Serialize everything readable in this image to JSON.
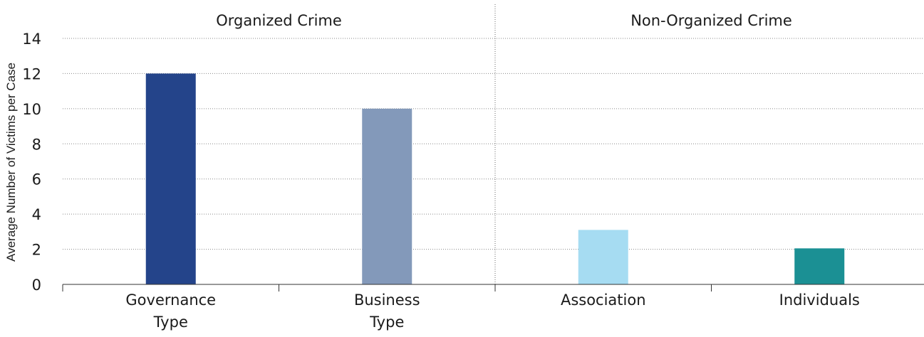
{
  "chart_data": {
    "type": "bar",
    "ylabel": "Average Number of Victims per Case",
    "ylim": [
      0,
      14
    ],
    "yticks": [
      0,
      2,
      4,
      6,
      8,
      10,
      12,
      14
    ],
    "grid": true,
    "groups": [
      {
        "label": "Organized Crime",
        "categories": [
          0,
          1
        ]
      },
      {
        "label": "Non-Organized Crime",
        "categories": [
          2,
          3
        ]
      }
    ],
    "categories": [
      [
        "Governance",
        "Type"
      ],
      [
        "Business",
        "Type"
      ],
      [
        "Association"
      ],
      [
        "Individuals"
      ]
    ],
    "values": [
      12,
      10,
      3.1,
      2.05
    ],
    "colors": [
      "#24448a",
      "#8399ba",
      "#a6dcf2",
      "#1b9094"
    ]
  }
}
